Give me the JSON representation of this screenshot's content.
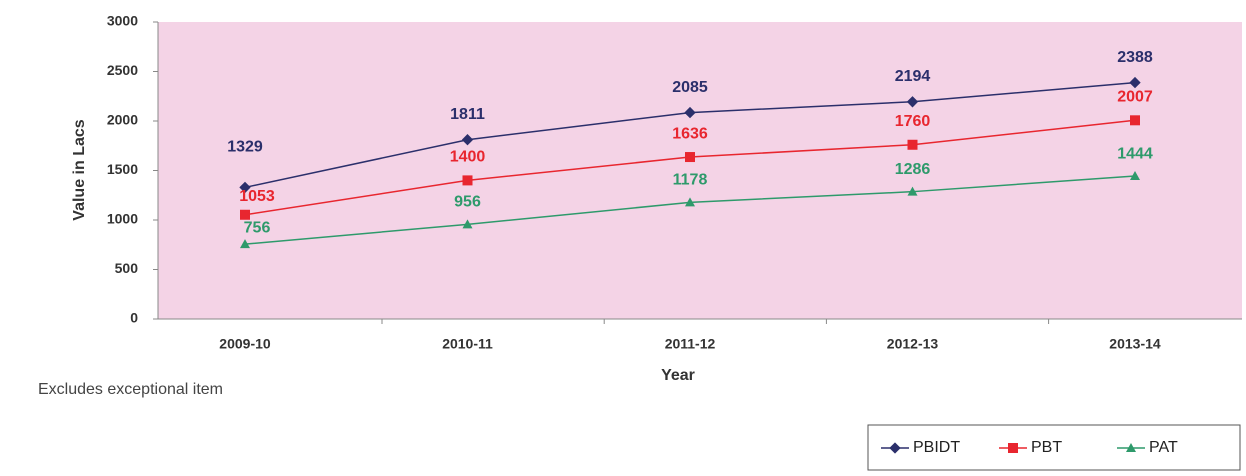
{
  "chart_data": {
    "type": "line",
    "categories": [
      "2009-10",
      "2010-11",
      "2011-12",
      "2012-13",
      "2013-14"
    ],
    "series": [
      {
        "name": "PBIDT",
        "color": "#2b2f6b",
        "values": [
          1329,
          1811,
          2085,
          2194,
          2388
        ]
      },
      {
        "name": "PBT",
        "color": "#e8262f",
        "values": [
          1053,
          1400,
          1636,
          1760,
          2007
        ]
      },
      {
        "name": "PAT",
        "color": "#2e9a6b",
        "values": [
          756,
          956,
          1178,
          1286,
          1444
        ]
      }
    ],
    "ylim": [
      0,
      3000
    ],
    "yticks": [
      0,
      500,
      1000,
      1500,
      2000,
      2500,
      3000
    ],
    "xlabel": "Year",
    "ylabel": "Value in Lacs",
    "note": "Excludes exceptional item",
    "legend": "bottom-right"
  }
}
